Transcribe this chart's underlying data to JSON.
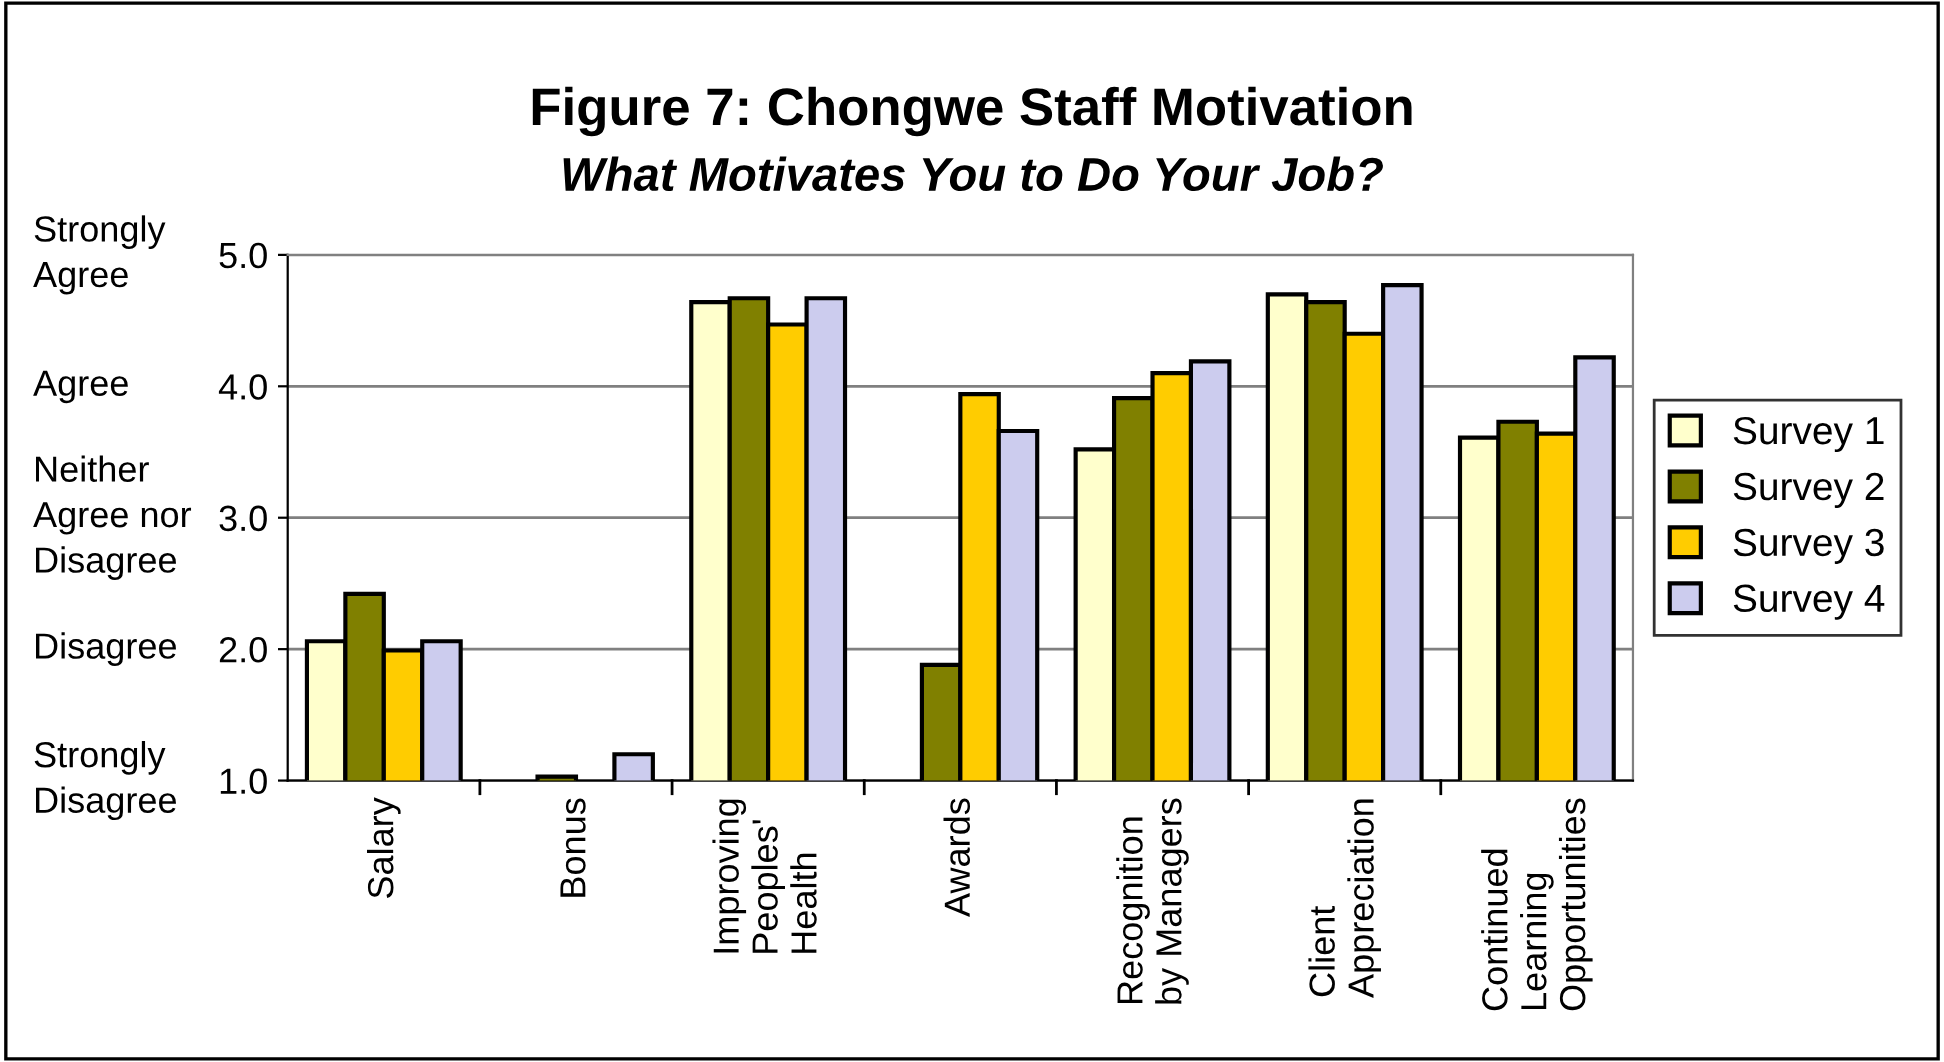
{
  "chart_data": {
    "type": "bar",
    "title": "Figure 7: Chongwe Staff Motivation",
    "subtitle": "What Motivates You to Do Your Job?",
    "categories": [
      "Salary",
      "Bonus",
      "Improving\nPeoples'\nHealth",
      "Awards",
      "Recognition\nby Managers",
      "Client\nAppreciation",
      "Continued\nLearning\nOpportunities"
    ],
    "series": [
      {
        "name": "Survey 1",
        "color": "#ffffcc",
        "values": [
          2.06,
          null,
          4.64,
          null,
          3.52,
          4.7,
          3.61
        ]
      },
      {
        "name": "Survey 2",
        "color": "#808000",
        "values": [
          2.42,
          1.03,
          4.67,
          1.88,
          3.91,
          4.64,
          3.73
        ]
      },
      {
        "name": "Survey 3",
        "color": "#ffcc00",
        "values": [
          1.99,
          null,
          4.47,
          3.94,
          4.1,
          4.4,
          3.64
        ]
      },
      {
        "name": "Survey 4",
        "color": "#ccccee",
        "values": [
          2.06,
          1.2,
          4.67,
          3.66,
          4.19,
          4.77,
          4.22
        ]
      }
    ],
    "ylim": [
      1.0,
      5.0
    ],
    "yticks": [
      {
        "value": 1.0,
        "label": "1.0"
      },
      {
        "value": 2.0,
        "label": "2.0"
      },
      {
        "value": 3.0,
        "label": "3.0"
      },
      {
        "value": 4.0,
        "label": "4.0"
      },
      {
        "value": 5.0,
        "label": "5.0"
      }
    ],
    "annotations": [
      "Strongly\nAgree",
      "Agree",
      "Neither\nAgree nor\nDisagree",
      "Disagree",
      "Strongly\nDisagree"
    ],
    "grid": "y",
    "legend": "right"
  }
}
